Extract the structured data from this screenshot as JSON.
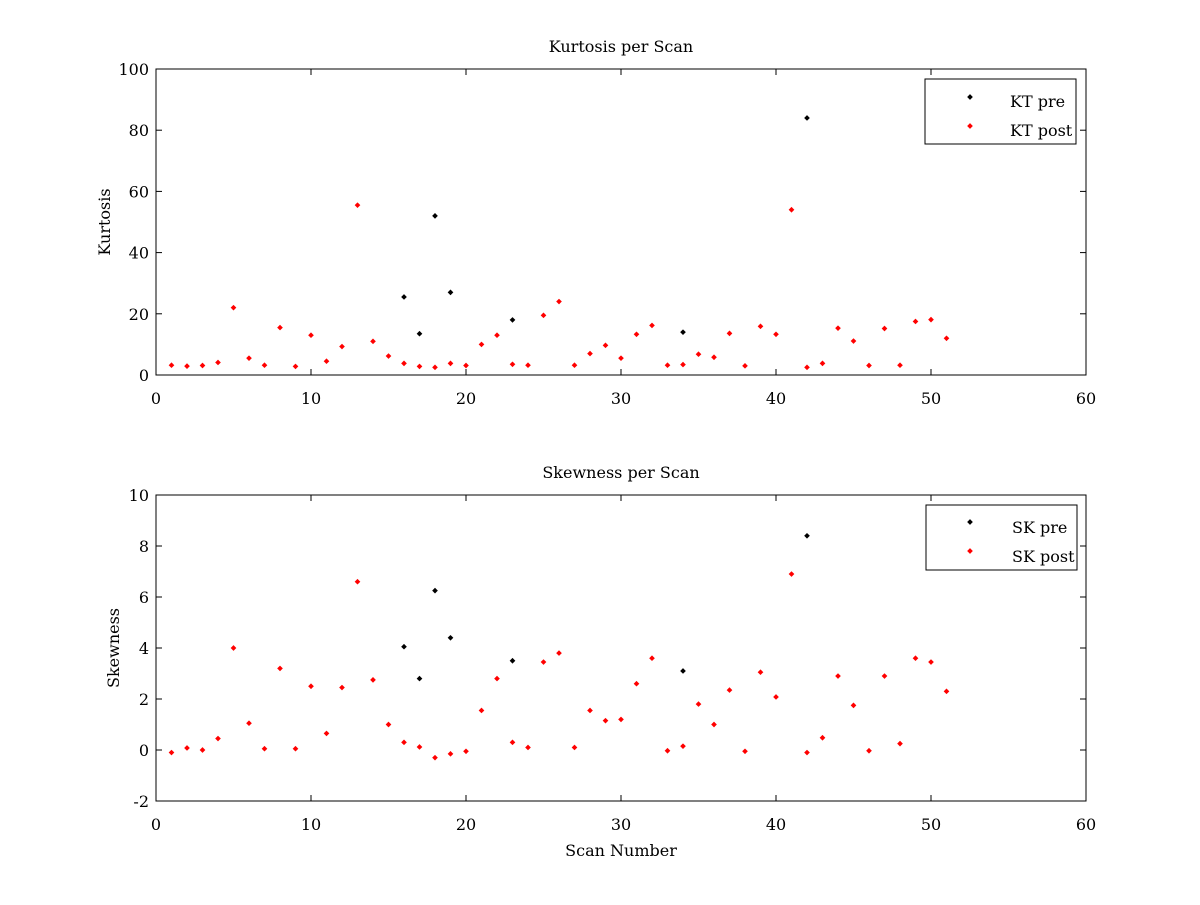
{
  "chart_data": [
    {
      "type": "scatter",
      "title": "Kurtosis per Scan",
      "xlabel": "",
      "ylabel": "Kurtosis",
      "xlim": [
        0,
        60
      ],
      "ylim": [
        0,
        100
      ],
      "xticks": [
        0,
        10,
        20,
        30,
        40,
        50,
        60
      ],
      "yticks": [
        0,
        20,
        40,
        60,
        80,
        100
      ],
      "grid": false,
      "legend_position": "top-right",
      "series": [
        {
          "name": "KT pre",
          "color": "#000000",
          "x": [
            16,
            17,
            18,
            19,
            23,
            34,
            42
          ],
          "y": [
            25.5,
            13.5,
            52,
            27,
            18,
            14,
            84
          ]
        },
        {
          "name": "KT post",
          "color": "#ff0000",
          "x": [
            1,
            2,
            3,
            4,
            5,
            6,
            7,
            8,
            9,
            10,
            11,
            12,
            13,
            14,
            15,
            16,
            17,
            18,
            19,
            20,
            21,
            22,
            23,
            24,
            25,
            26,
            27,
            28,
            29,
            30,
            31,
            32,
            33,
            34,
            35,
            36,
            37,
            38,
            39,
            40,
            41,
            42,
            43,
            44,
            45,
            46,
            47,
            48,
            49,
            50,
            51
          ],
          "y": [
            3.2,
            2.9,
            3.1,
            4.1,
            22,
            5.5,
            3.2,
            15.5,
            2.8,
            13,
            4.5,
            9.3,
            55.5,
            11,
            6.2,
            3.8,
            2.8,
            2.5,
            3.8,
            3.1,
            10,
            13,
            3.5,
            3.2,
            19.5,
            24,
            3.2,
            7,
            9.7,
            5.5,
            13.3,
            16.2,
            3.2,
            3.4,
            6.8,
            5.8,
            13.6,
            3,
            15.9,
            13.3,
            54,
            2.5,
            3.8,
            15.3,
            11.1,
            3.1,
            15.2,
            3.2,
            17.5,
            18.1,
            12
          ]
        }
      ]
    },
    {
      "type": "scatter",
      "title": "Skewness per Scan",
      "xlabel": "Scan Number",
      "ylabel": "Skewness",
      "xlim": [
        0,
        60
      ],
      "ylim": [
        -2,
        10
      ],
      "xticks": [
        0,
        10,
        20,
        30,
        40,
        50,
        60
      ],
      "yticks": [
        -2,
        0,
        2,
        4,
        6,
        8,
        10
      ],
      "grid": false,
      "legend_position": "top-right",
      "series": [
        {
          "name": "SK pre",
          "color": "#000000",
          "x": [
            16,
            17,
            18,
            19,
            23,
            34,
            42
          ],
          "y": [
            4.05,
            2.8,
            6.25,
            4.4,
            3.5,
            3.1,
            8.4
          ]
        },
        {
          "name": "SK post",
          "color": "#ff0000",
          "x": [
            1,
            2,
            3,
            4,
            5,
            6,
            7,
            8,
            9,
            10,
            11,
            12,
            13,
            14,
            15,
            16,
            17,
            18,
            19,
            20,
            21,
            22,
            23,
            24,
            25,
            26,
            27,
            28,
            29,
            30,
            31,
            32,
            33,
            34,
            35,
            36,
            37,
            38,
            39,
            40,
            41,
            42,
            43,
            44,
            45,
            46,
            47,
            48,
            49,
            50,
            51
          ],
          "y": [
            -0.1,
            0.08,
            0,
            0.45,
            4,
            1.05,
            0.05,
            3.2,
            0.05,
            2.5,
            0.65,
            2.45,
            6.6,
            2.75,
            1,
            0.3,
            0.12,
            -0.3,
            -0.15,
            -0.05,
            1.55,
            2.8,
            0.3,
            0.1,
            3.45,
            3.8,
            0.1,
            1.55,
            1.15,
            1.2,
            2.6,
            3.6,
            -0.03,
            0.15,
            1.8,
            1,
            2.35,
            -0.05,
            3.05,
            2.08,
            6.9,
            -0.1,
            0.48,
            2.9,
            1.75,
            -0.03,
            2.9,
            0.25,
            3.6,
            3.45,
            2.3
          ]
        }
      ]
    }
  ]
}
